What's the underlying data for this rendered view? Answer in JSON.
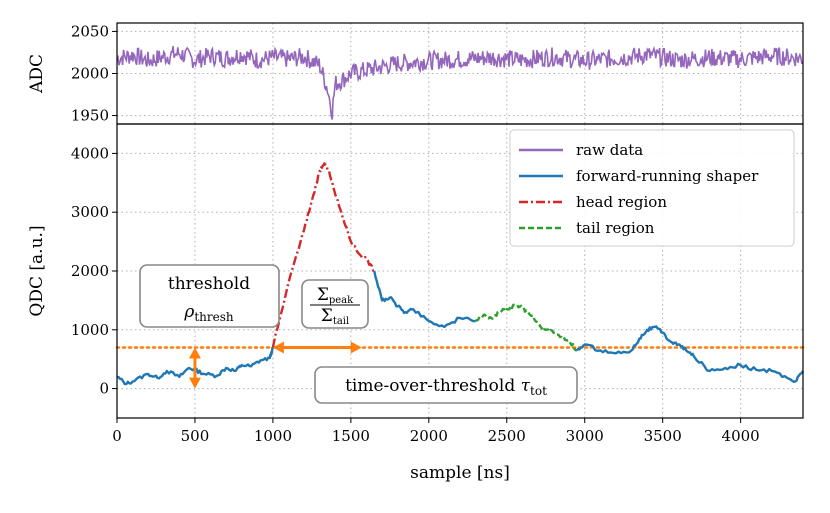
{
  "chart_data": [
    {
      "type": "line",
      "panel": "top",
      "ylabel": "ADC",
      "xlim": [
        0,
        4400
      ],
      "ylim": [
        1940,
        2060
      ],
      "yticks": [
        1950,
        2000,
        2050
      ],
      "ytick_labels": [
        "1950",
        "2000",
        "2050"
      ],
      "grid": true,
      "series": [
        {
          "name": "raw data",
          "color": "#9467bd",
          "x": [
            0,
            100,
            200,
            300,
            400,
            500,
            600,
            700,
            800,
            900,
            1000,
            1100,
            1200,
            1300,
            1350,
            1380,
            1400,
            1450,
            1500,
            1600,
            1700,
            1800,
            2000,
            2200,
            2400,
            2600,
            2800,
            3000,
            3200,
            3400,
            3600,
            3800,
            4000,
            4200,
            4400
          ],
          "y": [
            2018,
            2022,
            2015,
            2020,
            2024,
            2016,
            2021,
            2018,
            2023,
            2016,
            2019,
            2017,
            2020,
            2010,
            1982,
            1955,
            1988,
            1993,
            2000,
            2004,
            2008,
            2012,
            2015,
            2017,
            2019,
            2016,
            2020,
            2015,
            2018,
            2022,
            2016,
            2019,
            2017,
            2021,
            2018
          ]
        }
      ]
    },
    {
      "type": "line",
      "panel": "bottom",
      "xlabel": "sample [ns]",
      "ylabel": "QDC [a.u.]",
      "xlim": [
        0,
        4400
      ],
      "ylim": [
        -500,
        4500
      ],
      "xticks": [
        0,
        500,
        1000,
        1500,
        2000,
        2500,
        3000,
        3500,
        4000
      ],
      "xtick_labels": [
        "0",
        "500",
        "1000",
        "1500",
        "2000",
        "2500",
        "3000",
        "3500",
        "4000"
      ],
      "yticks": [
        0,
        1000,
        2000,
        3000,
        4000
      ],
      "ytick_labels": [
        "0",
        "1000",
        "2000",
        "3000",
        "4000"
      ],
      "grid": true,
      "legend_position": "top-right",
      "threshold": 700,
      "threshold_color": "#ff7f0e",
      "series": [
        {
          "name": "forward-running shaper",
          "color": "#1f77b4",
          "x": [
            0,
            60,
            120,
            200,
            260,
            320,
            400,
            460,
            500,
            560,
            640,
            700,
            760,
            800,
            860,
            920,
            980,
            1000
          ],
          "y": [
            200,
            80,
            150,
            250,
            180,
            300,
            200,
            350,
            320,
            250,
            220,
            350,
            300,
            400,
            380,
            480,
            520,
            700
          ]
        },
        {
          "name": "head region",
          "color": "#d62728",
          "x": [
            1000,
            1100,
            1200,
            1250,
            1300,
            1330,
            1360,
            1400,
            1450,
            1500,
            1550,
            1600,
            1650
          ],
          "y": [
            700,
            1800,
            2700,
            3200,
            3700,
            3830,
            3700,
            3300,
            2900,
            2500,
            2300,
            2200,
            2000
          ]
        },
        {
          "name": "forward-running shaper",
          "color": "#1f77b4",
          "x": [
            1650,
            1700,
            1750,
            1800,
            1850,
            1900,
            2000,
            2100,
            2200,
            2300
          ],
          "y": [
            2000,
            1500,
            1550,
            1400,
            1300,
            1350,
            1150,
            1050,
            1200,
            1150
          ]
        },
        {
          "name": "tail region",
          "color": "#2ca02c",
          "x": [
            2300,
            2350,
            2400,
            2450,
            2500,
            2550,
            2600,
            2650,
            2700,
            2750,
            2800,
            2850,
            2900,
            2950
          ],
          "y": [
            1150,
            1250,
            1200,
            1300,
            1350,
            1420,
            1380,
            1250,
            1100,
            1000,
            950,
            880,
            820,
            650
          ]
        },
        {
          "name": "forward-running shaper",
          "color": "#1f77b4",
          "x": [
            2950,
            3000,
            3100,
            3200,
            3300,
            3350,
            3400,
            3450,
            3500,
            3550,
            3600,
            3650,
            3700,
            3800,
            3900,
            4000,
            4100,
            4200,
            4300,
            4350,
            4400
          ],
          "y": [
            650,
            750,
            650,
            600,
            650,
            850,
            1000,
            1050,
            950,
            800,
            750,
            650,
            550,
            300,
            350,
            400,
            320,
            300,
            180,
            120,
            300
          ]
        }
      ],
      "legend": [
        {
          "label": "raw data",
          "color": "#9467bd",
          "dash": "solid"
        },
        {
          "label": "forward-running shaper",
          "color": "#1f77b4",
          "dash": "solid"
        },
        {
          "label": "head region",
          "color": "#d62728",
          "dash": "dashdot"
        },
        {
          "label": "tail region",
          "color": "#2ca02c",
          "dash": "dashed"
        }
      ],
      "annotations": {
        "threshold_line1": "threshold",
        "threshold_line2_base": "ρ",
        "threshold_line2_sub": "thresh",
        "ratio_num_base": "Σ",
        "ratio_num_sub": "peak",
        "ratio_den_base": "Σ",
        "ratio_den_sub": "tail",
        "tot_text": "time-over-threshold ",
        "tot_base": "τ",
        "tot_sub": "tot"
      }
    }
  ]
}
